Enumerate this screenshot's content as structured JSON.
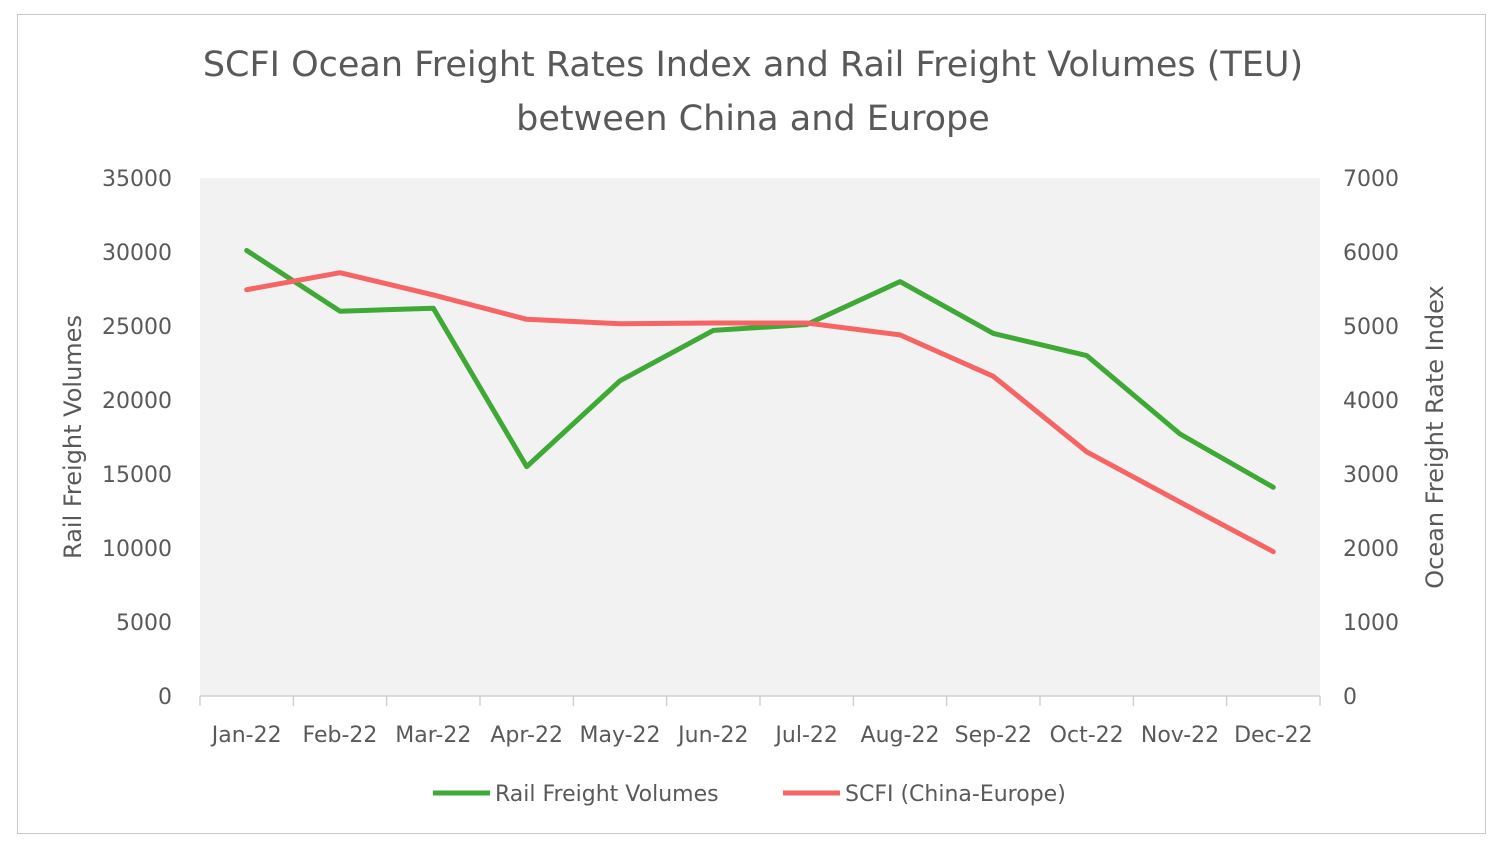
{
  "chart_data": {
    "type": "line",
    "title": [
      "SCFI Ocean Freight Rates Index and Rail Freight Volumes (TEU)",
      "between China and Europe"
    ],
    "categories": [
      "Jan-22",
      "Feb-22",
      "Mar-22",
      "Apr-22",
      "May-22",
      "Jun-22",
      "Jul-22",
      "Aug-22",
      "Sep-22",
      "Oct-22",
      "Nov-22",
      "Dec-22"
    ],
    "ylabel": "Rail Freight Volumes",
    "y2label": "Ocean Freight Rate Index",
    "ylim": [
      0,
      35000
    ],
    "y2lim": [
      0,
      7000
    ],
    "yticks": [
      0,
      5000,
      10000,
      15000,
      20000,
      25000,
      30000,
      35000
    ],
    "y2ticks": [
      0,
      1000,
      2000,
      3000,
      4000,
      5000,
      6000,
      7000
    ],
    "grid": false,
    "legend_position": "bottom",
    "series": [
      {
        "name": "Rail Freight Volumes",
        "axis": "left",
        "color": "#3ea935",
        "values": [
          30100,
          26000,
          26200,
          15500,
          21300,
          24700,
          25100,
          28000,
          24500,
          23000,
          17700,
          14100
        ]
      },
      {
        "name": "SCFI (China-Europe)",
        "axis": "right",
        "color": "#f66464",
        "values": [
          5490,
          5720,
          5420,
          5090,
          5030,
          5040,
          5040,
          4880,
          4320,
          3300,
          2620,
          1950
        ]
      }
    ],
    "plot_background": "#f2f2f2"
  }
}
